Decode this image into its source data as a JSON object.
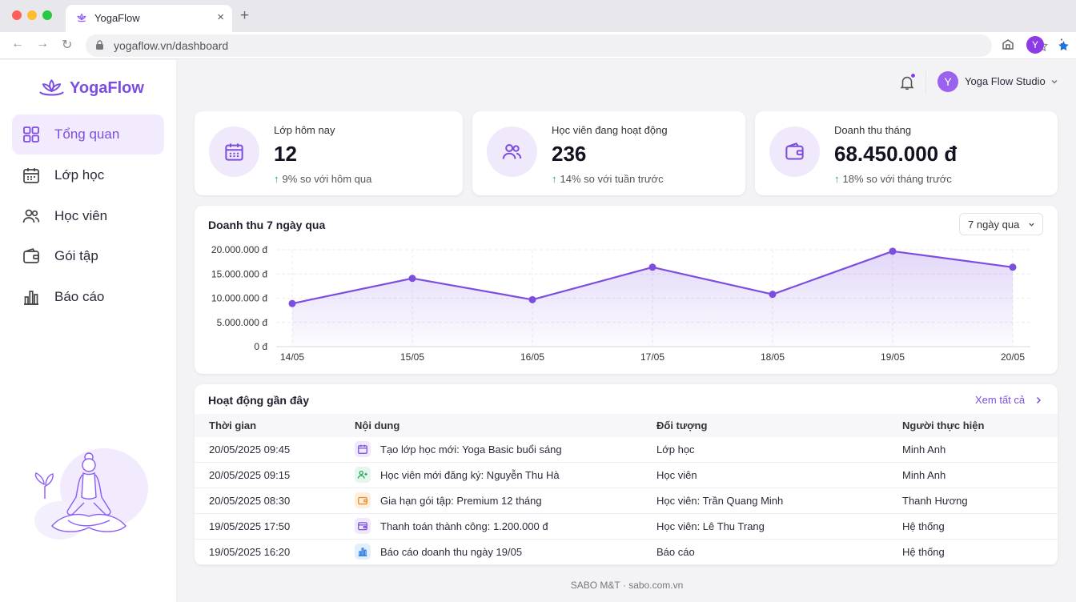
{
  "browser": {
    "tab_title": "YogaFlow",
    "tab_close": "×",
    "new_tab": "+",
    "url": "yogaflow.vn/dashboard",
    "profile_initial": "Y"
  },
  "sidebar": {
    "logo_text": "YogaFlow",
    "items": [
      {
        "label": "Tổng quan",
        "icon": "grid-icon",
        "active": true
      },
      {
        "label": "Lớp học",
        "icon": "calendar-icon",
        "active": false
      },
      {
        "label": "Học viên",
        "icon": "users-icon",
        "active": false
      },
      {
        "label": "Gói tập",
        "icon": "wallet-icon",
        "active": false
      },
      {
        "label": "Báo cáo",
        "icon": "bar-chart-icon",
        "active": false
      }
    ]
  },
  "header": {
    "user_initial": "Y",
    "user_name": "Yoga Flow Studio"
  },
  "stats": [
    {
      "label": "Lớp hôm nay",
      "value": "12",
      "trend": "9% so với hôm qua",
      "icon": "calendar-icon"
    },
    {
      "label": "Học viên đang hoạt động",
      "value": "236",
      "trend": "14% so với tuần trước",
      "icon": "users-icon"
    },
    {
      "label": "Doanh thu tháng",
      "value": "68.450.000 đ",
      "trend": "18% so với tháng trước",
      "icon": "wallet-icon"
    }
  ],
  "revenue_chart": {
    "title": "Doanh thu 7 ngày qua",
    "range_label": "7 ngày qua"
  },
  "chart_data": {
    "type": "area",
    "title": "Doanh thu 7 ngày qua",
    "categories": [
      "14/05",
      "15/05",
      "16/05",
      "17/05",
      "18/05",
      "19/05",
      "20/05"
    ],
    "series": [
      {
        "values": [
          8900000,
          14100000,
          9700000,
          16400000,
          10800000,
          19700000,
          16400000
        ]
      }
    ],
    "yticks": [
      "0 đ",
      "5.000.000 đ",
      "10.000.000 đ",
      "15.000.000 đ",
      "20.000.000 đ"
    ],
    "ylim": [
      0,
      20000000
    ],
    "grid": true,
    "color": "#7c4ddf"
  },
  "activity": {
    "title": "Hoạt động gần đây",
    "view_all": "Xem tất cả",
    "columns": [
      "Thời gian",
      "Nội dung",
      "Đối tượng",
      "Người thực hiện"
    ],
    "rows": [
      {
        "time": "20/05/2025 09:45",
        "content": "Tạo lớp học mới: Yoga Basic buổi sáng",
        "target": "Lớp học",
        "actor": "Minh Anh",
        "icon": "calendar-icon",
        "icon_color": "#7c4ddf",
        "icon_bg": "#efe9fb"
      },
      {
        "time": "20/05/2025 09:15",
        "content": "Học viên mới đăng ký: Nguyễn Thu Hà",
        "target": "Học viên",
        "actor": "Minh Anh",
        "icon": "user-plus-icon",
        "icon_color": "#22a559",
        "icon_bg": "#e5f6ec"
      },
      {
        "time": "20/05/2025 08:30",
        "content": "Gia hạn gói tập: Premium 12 tháng",
        "target": "Học viên: Trần Quang Minh",
        "actor": "Thanh Hương",
        "icon": "wallet-icon",
        "icon_color": "#f08a24",
        "icon_bg": "#fdeedd"
      },
      {
        "time": "19/05/2025 17:50",
        "content": "Thanh toán thành công: 1.200.000 đ",
        "target": "Học viên: Lê Thu Trang",
        "actor": "Hệ thống",
        "icon": "payment-icon",
        "icon_color": "#7c4ddf",
        "icon_bg": "#efe9fb"
      },
      {
        "time": "19/05/2025 16:20",
        "content": "Báo cáo doanh thu ngày 19/05",
        "target": "Báo cáo",
        "actor": "Hệ thống",
        "icon": "bar-chart-icon",
        "icon_color": "#2f7fe0",
        "icon_bg": "#e3effc"
      }
    ]
  },
  "footer": "SABO M&T · sabo.com.vn"
}
